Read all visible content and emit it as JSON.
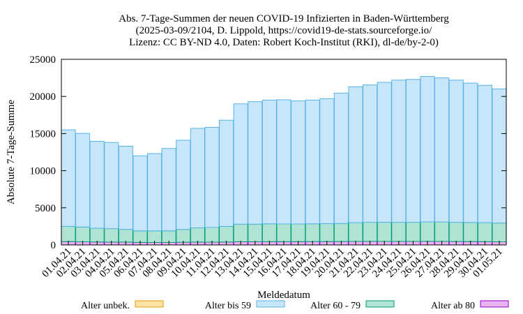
{
  "chart_data": {
    "type": "bar",
    "stacked": true,
    "title_lines": [
      "Abs. 7-Tage-Summen der neuen COVID-19 Infizierten in Baden-Württemberg",
      "(2025-03-09/2104, D. Lippold, https://covid19-de-stats.sourceforge.io/",
      "Lizenz: CC BY-ND 4.0, Daten: Robert Koch-Institut (RKI), dl-de/by-2-0)"
    ],
    "xlabel": "Meldedatum",
    "ylabel": "Absolute 7-Tage-Summe",
    "ylim": [
      0,
      25000
    ],
    "yticks": [
      0,
      5000,
      10000,
      15000,
      20000,
      25000
    ],
    "grid": false,
    "legend_position": "bottom",
    "categories": [
      "01.04.21",
      "02.04.21",
      "03.04.21",
      "04.04.21",
      "05.04.21",
      "06.04.21",
      "07.04.21",
      "08.04.21",
      "09.04.21",
      "10.04.21",
      "11.04.21",
      "12.04.21",
      "13.04.21",
      "14.04.21",
      "15.04.21",
      "16.04.21",
      "17.04.21",
      "18.04.21",
      "19.04.21",
      "20.04.21",
      "21.04.21",
      "22.04.21",
      "23.04.21",
      "24.04.21",
      "25.04.21",
      "26.04.21",
      "27.04.21",
      "28.04.21",
      "29.04.21",
      "30.04.21",
      "01.05.21"
    ],
    "series": [
      {
        "name": "Alter ab 80",
        "fill": "#e8b4f0",
        "stroke": "#9400d3",
        "values": [
          450,
          420,
          400,
          390,
          380,
          340,
          330,
          330,
          360,
          380,
          380,
          390,
          430,
          430,
          440,
          440,
          440,
          450,
          450,
          460,
          470,
          480,
          470,
          470,
          470,
          480,
          470,
          460,
          450,
          440,
          420
        ]
      },
      {
        "name": "Alter 60 - 79",
        "fill": "#b0e3d4",
        "stroke": "#009e73",
        "values": [
          2050,
          2000,
          1850,
          1810,
          1720,
          1560,
          1570,
          1570,
          1740,
          1920,
          1970,
          2110,
          2370,
          2370,
          2410,
          2380,
          2380,
          2400,
          2420,
          2440,
          2530,
          2570,
          2580,
          2580,
          2580,
          2620,
          2630,
          2590,
          2580,
          2560,
          2530
        ]
      },
      {
        "name": "Alter bis 59",
        "fill": "#c8e6fa",
        "stroke": "#56b4e9",
        "values": [
          13000,
          12600,
          11700,
          11600,
          11200,
          10100,
          10400,
          11100,
          12000,
          13400,
          13500,
          14300,
          16200,
          16500,
          16650,
          16730,
          16580,
          16650,
          16830,
          17550,
          18300,
          18500,
          18850,
          19150,
          19250,
          19600,
          19400,
          19150,
          18770,
          18500,
          18050
        ]
      },
      {
        "name": "Alter unbek.",
        "fill": "#fde2a8",
        "stroke": "#e69f00",
        "values": [
          0,
          0,
          0,
          0,
          0,
          0,
          0,
          0,
          0,
          0,
          0,
          0,
          0,
          0,
          0,
          0,
          0,
          0,
          0,
          0,
          0,
          0,
          0,
          0,
          0,
          0,
          0,
          0,
          0,
          0,
          0
        ]
      }
    ],
    "legend_order": [
      "Alter unbek.",
      "Alter bis 59",
      "Alter 60 - 79",
      "Alter ab 80"
    ]
  }
}
